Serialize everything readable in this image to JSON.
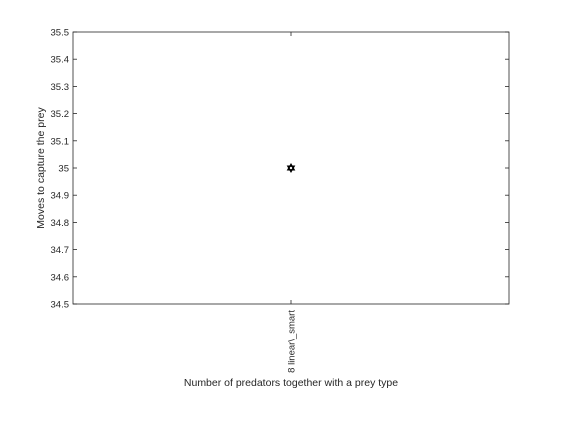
{
  "chart_data": {
    "type": "scatter",
    "title": "",
    "xlabel": "Number of predators together with a prey type",
    "ylabel": "Moves to capture the prey",
    "categories": [
      "8 linear\\_smart"
    ],
    "series": [
      {
        "values": [
          35
        ]
      }
    ],
    "ylim": [
      34.5,
      35.5
    ],
    "yticks": [
      "34.5",
      "34.6",
      "34.7",
      "34.8",
      "34.9",
      "35",
      "35.1",
      "35.2",
      "35.3",
      "35.4",
      "35.5"
    ],
    "grid": false,
    "marker_color": "#000000",
    "marker": "hexagram"
  }
}
